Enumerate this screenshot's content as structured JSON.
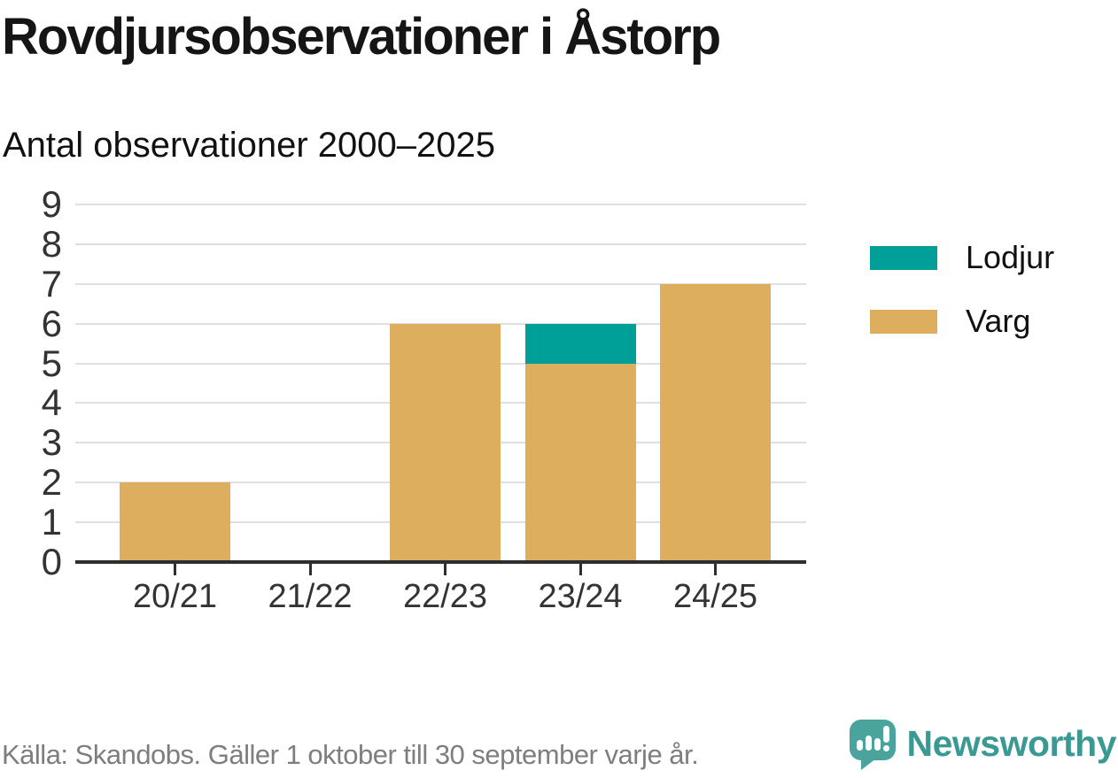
{
  "title": "Rovdjursobservationer i Åstorp",
  "subtitle": "Antal observationer 2000–2025",
  "chart_data": {
    "type": "bar",
    "stacked": true,
    "title": "Rovdjursobservationer i Åstorp",
    "subtitle": "Antal observationer 2000–2025",
    "categories": [
      "20/21",
      "21/22",
      "22/23",
      "23/24",
      "24/25"
    ],
    "series": [
      {
        "name": "Lodjur",
        "color": "#00a099",
        "values": [
          0,
          0,
          0,
          1,
          0
        ]
      },
      {
        "name": "Varg",
        "color": "#dcae5d",
        "values": [
          2,
          0,
          6,
          5,
          7
        ]
      }
    ],
    "totals_per_category": [
      2,
      0,
      6,
      6,
      7
    ],
    "xlabel": "",
    "ylabel": "",
    "ylim": [
      0,
      9
    ],
    "yticks": [
      0,
      1,
      2,
      3,
      4,
      5,
      6,
      7,
      8,
      9
    ],
    "grid": true,
    "legend_position": "right"
  },
  "legend_note": "legend rows are rendered from chart_data.series",
  "footer": {
    "source": "Källa: Skandobs. Gäller 1 oktober till 30 september varje år.",
    "brand": "Newsworthy"
  },
  "colors": {
    "lodjur": "#00a099",
    "varg": "#dcae5d",
    "gridline": "#e0e0e0",
    "axis": "#2e2e2e",
    "text_dark": "#151515",
    "tick_label": "#333333",
    "footer_gray": "#7e7e7e",
    "brand_teal": "#3a9a93",
    "badge_teal": "#4aa39c"
  }
}
